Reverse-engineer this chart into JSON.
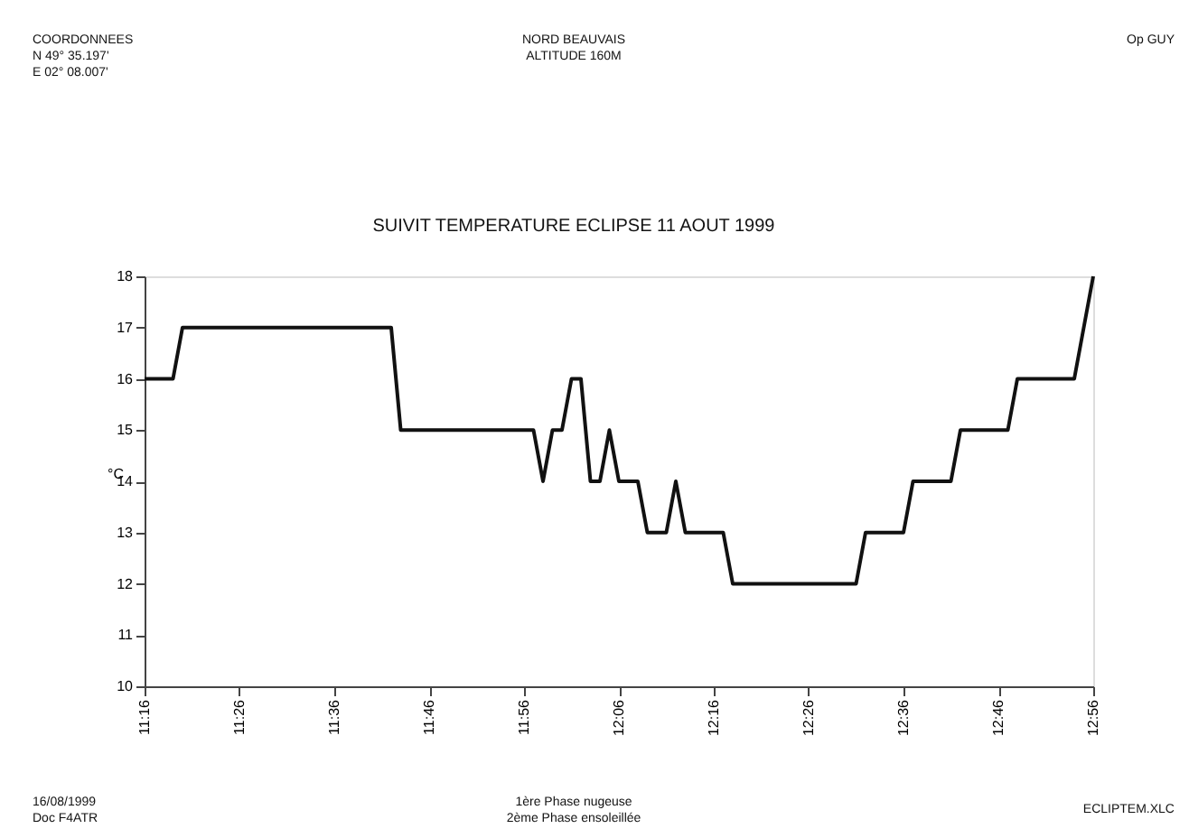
{
  "chart_data": {
    "type": "line",
    "title": "SUIVIT TEMPERATURE ECLIPSE 11 AOUT 1999",
    "ylabel": "°C",
    "x": [
      11.2667,
      11.3167,
      11.3333,
      11.7,
      11.7167,
      11.95,
      11.9667,
      11.9833,
      12,
      12.0167,
      12.0333,
      12.05,
      12.0667,
      12.0833,
      12.1,
      12.1333,
      12.15,
      12.1833,
      12.2,
      12.2167,
      12.2833,
      12.3,
      12.5167,
      12.5333,
      12.6,
      12.6167,
      12.6833,
      12.7,
      12.7833,
      12.8,
      12.9,
      12.9333
    ],
    "series": [
      {
        "color": "#111111",
        "values": [
          16,
          16,
          17,
          17,
          15,
          15,
          14,
          15,
          15,
          16,
          16,
          14,
          14,
          15,
          14,
          14,
          13,
          13,
          14,
          13,
          13,
          12,
          12,
          13,
          13,
          14,
          14,
          15,
          15,
          16,
          16,
          18
        ]
      }
    ],
    "xlim": [
      11.2667,
      12.9333
    ],
    "xticks": [
      {
        "value": 11.2667,
        "label": "11:16"
      },
      {
        "value": 11.4333,
        "label": "11:26"
      },
      {
        "value": 11.6,
        "label": "11:36"
      },
      {
        "value": 11.7667,
        "label": "11:46"
      },
      {
        "value": 11.9333,
        "label": "11:56"
      },
      {
        "value": 12.1,
        "label": "12:06"
      },
      {
        "value": 12.2667,
        "label": "12:16"
      },
      {
        "value": 12.4333,
        "label": "12:26"
      },
      {
        "value": 12.6,
        "label": "12:36"
      },
      {
        "value": 12.7667,
        "label": "12:46"
      },
      {
        "value": 12.9333,
        "label": "12:56"
      }
    ],
    "ylim": [
      10,
      18
    ],
    "yticks": [
      10,
      11,
      12,
      13,
      14,
      15,
      16,
      17,
      18
    ],
    "grid": false,
    "marker": "none",
    "line_style": "solid",
    "annotations": [
      "COORDONNEES\nN 49° 35.197'\nE 02° 08.007'",
      "NORD BEAUVAIS\nALTITUDE 160M",
      "Op GUY",
      "16/08/1999\nDoc F4ATR",
      "1ère Phase nugeuse\n2ème Phase ensoleillée",
      "ECLIPTEM.XLC"
    ]
  }
}
